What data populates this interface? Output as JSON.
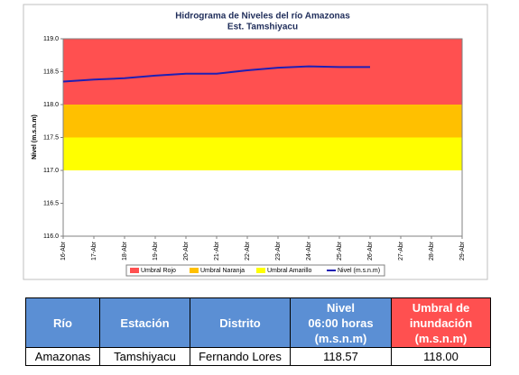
{
  "chart_data": {
    "type": "line",
    "title": "Hidrograma de Niveles del río Amazonas",
    "subtitle": "Est. Tamshiyacu",
    "y_label": "Nivel (m.s.n.m)",
    "categories": [
      "16-Abr",
      "17-Abr",
      "18-Abr",
      "19-Abr",
      "20-Abr",
      "21-Abr",
      "22-Abr",
      "23-Abr",
      "24-Abr",
      "25-Abr",
      "26-Abr",
      "27-Abr",
      "28-Abr",
      "29-Abr"
    ],
    "bands": [
      {
        "name": "Umbral Rojo",
        "color": "#ff5050",
        "from": 118,
        "to": 119
      },
      {
        "name": "Umbral Naranja",
        "color": "#ffc000",
        "from": 117.5,
        "to": 118
      },
      {
        "name": "Umbral Amarillo",
        "color": "#ffff00",
        "from": 117,
        "to": 117.5
      }
    ],
    "series": [
      {
        "name": "Nivel (m.s.n.m)",
        "color": "#1f1fb4",
        "values": [
          118.35,
          118.38,
          118.4,
          118.44,
          118.47,
          118.47,
          118.52,
          118.56,
          118.58,
          118.57,
          118.57,
          null,
          null,
          null
        ]
      }
    ],
    "ylim": [
      116,
      119
    ],
    "yticks": [
      {
        "value": 116,
        "label": "116.0"
      },
      116.5,
      {
        "value": 117,
        "label": "117.0"
      },
      117.5,
      {
        "value": 118,
        "label": "118.0"
      },
      118.5,
      {
        "value": 119,
        "label": "119.0"
      }
    ],
    "grid": false,
    "legend": "bottom"
  },
  "table": {
    "header": [
      [
        "Río"
      ],
      [
        "Estación"
      ],
      [
        "Distrito"
      ],
      [
        "Nivel",
        "06:00 horas",
        "(m.s.n.m)"
      ],
      [
        "Umbral de",
        "inundación",
        "(m.s.n.m)"
      ]
    ],
    "rows": [
      [
        "Amazonas",
        "Tamshiyacu",
        "Fernando Lores",
        "118.57",
        "118.00"
      ]
    ]
  }
}
